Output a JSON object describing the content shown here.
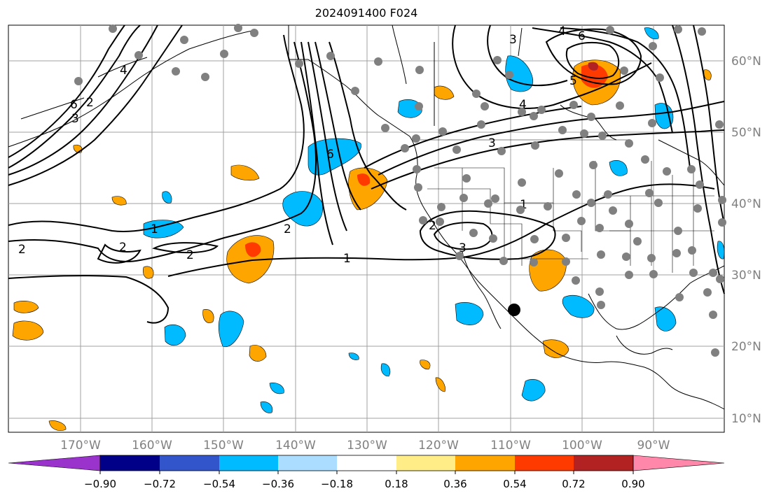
{
  "title": "2024091400 F024",
  "map": {
    "lon_labels": [
      "170°W",
      "160°W",
      "150°W",
      "140°W",
      "130°W",
      "120°W",
      "110°W",
      "100°W",
      "90°W"
    ],
    "lat_labels": [
      "60°N",
      "50°N",
      "40°N",
      "30°N",
      "20°N",
      "10°N"
    ],
    "contour_labels": [
      "1",
      "2",
      "3",
      "4",
      "5",
      "6"
    ],
    "colors": {
      "grid": "#a0a0a0",
      "coast": "#000000",
      "contour": "#000000",
      "station": "#808080",
      "marker": "#000000"
    }
  },
  "colorbar": {
    "ticks": [
      "−0.90",
      "−0.72",
      "−0.54",
      "−0.36",
      "−0.18",
      "0.18",
      "0.36",
      "0.54",
      "0.72",
      "0.90"
    ],
    "colors": [
      "#9933cc",
      "#000088",
      "#3355cc",
      "#00bbff",
      "#aaddff",
      "#ffffff",
      "#ffee88",
      "#ffa500",
      "#ff3a00",
      "#b22222",
      "#ff88aa"
    ]
  }
}
